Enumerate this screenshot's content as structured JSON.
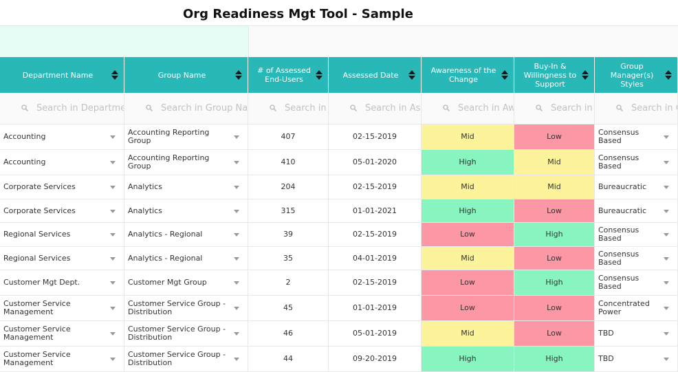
{
  "page_title": "Org Readiness Mgt Tool - Sample",
  "columns": [
    {
      "key": "department",
      "label": "Department Name"
    },
    {
      "key": "group",
      "label": "Group Name"
    },
    {
      "key": "assessed",
      "label": "# of Assessed End-Users"
    },
    {
      "key": "date",
      "label": "Assessed Date"
    },
    {
      "key": "awareness",
      "label": "Awareness of the Change"
    },
    {
      "key": "buyin",
      "label": "Buy-In & Willingness to Support"
    },
    {
      "key": "style",
      "label": "Group Manager(s) Styles"
    }
  ],
  "filters": [
    "Search in Department Name",
    "Search in Group Name",
    "Search in # of Assessed End-Users",
    "Search in Assessed Date",
    "Search in Awareness of the Change",
    "Search in Buy-In & Willingness to Support",
    "Search in Group Manager(s) Styles"
  ],
  "rows": [
    {
      "department": "Accounting",
      "group": "Accounting Reporting Group",
      "assessed": "407",
      "date": "02-15-2019",
      "awareness": "Mid",
      "buyin": "Low",
      "style": "Consensus Based"
    },
    {
      "department": "Accounting",
      "group": "Accounting Reporting Group",
      "assessed": "410",
      "date": "05-01-2020",
      "awareness": "High",
      "buyin": "Mid",
      "style": "Consensus Based"
    },
    {
      "department": "Corporate Services",
      "group": "Analytics",
      "assessed": "204",
      "date": "02-15-2019",
      "awareness": "Mid",
      "buyin": "Mid",
      "style": "Bureaucratic"
    },
    {
      "department": "Corporate Services",
      "group": "Analytics",
      "assessed": "315",
      "date": "01-01-2021",
      "awareness": "High",
      "buyin": "Low",
      "style": "Bureaucratic"
    },
    {
      "department": "Regional Services",
      "group": "Analytics - Regional",
      "assessed": "39",
      "date": "02-15-2019",
      "awareness": "Low",
      "buyin": "High",
      "style": "Consensus Based"
    },
    {
      "department": "Regional Services",
      "group": "Analytics - Regional",
      "assessed": "35",
      "date": "04-01-2019",
      "awareness": "Mid",
      "buyin": "Low",
      "style": "Consensus Based"
    },
    {
      "department": "Customer Mgt Dept.",
      "group": "Customer Mgt Group",
      "assessed": "2",
      "date": "02-15-2019",
      "awareness": "Low",
      "buyin": "High",
      "style": "Consensus Based"
    },
    {
      "department": "Customer Service Management",
      "group": "Customer Service Group - Distribution",
      "assessed": "45",
      "date": "01-01-2019",
      "awareness": "Low",
      "buyin": "Low",
      "style": "Concentrated Power"
    },
    {
      "department": "Customer Service Management",
      "group": "Customer Service Group - Distribution",
      "assessed": "46",
      "date": "05-01-2019",
      "awareness": "Mid",
      "buyin": "Low",
      "style": "TBD"
    },
    {
      "department": "Customer Service Management",
      "group": "Customer Service Group - Distribution",
      "assessed": "44",
      "date": "09-20-2019",
      "awareness": "High",
      "buyin": "High",
      "style": "TBD"
    }
  ],
  "colors": {
    "header": "#28b8b8",
    "high": "#88f5c0",
    "mid": "#fcf39a",
    "low": "#fc97a5"
  },
  "icons": {
    "sort": "sort-icon",
    "search": "search-icon",
    "dropdown": "chevron-down-icon"
  }
}
